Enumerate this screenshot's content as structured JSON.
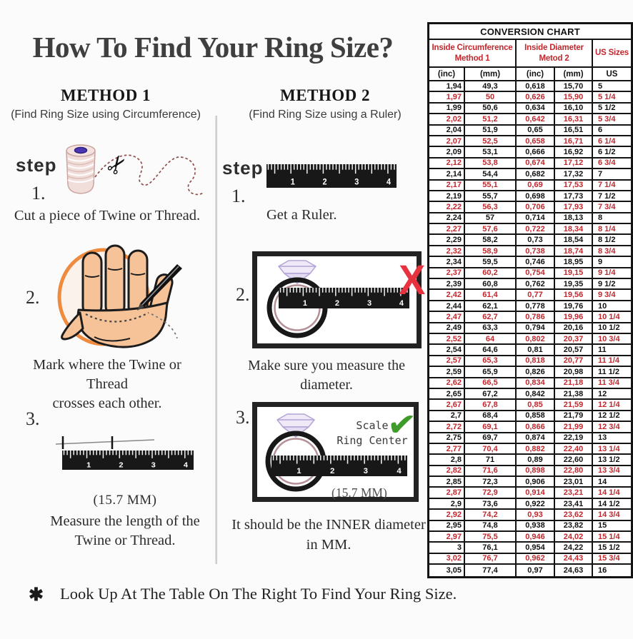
{
  "title": "How To Find Your Ring Size?",
  "methods": {
    "method1": {
      "heading": "METHOD 1",
      "subtitle": "(Find Ring Size using Circumference)",
      "step_label": "step",
      "steps": [
        {
          "num": "1.",
          "caption_lines": [
            "Cut a piece of Twine or Thread."
          ]
        },
        {
          "num": "2.",
          "caption_lines": [
            "Mark where the Twine or Thread",
            "crosses each other."
          ]
        },
        {
          "num": "3.",
          "measurement": "(15.7 MM)",
          "caption_lines": [
            "Measure the length of the",
            "Twine or Thread."
          ]
        }
      ]
    },
    "method2": {
      "heading": "METHOD 2",
      "subtitle": "(Find Ring Size using a Ruler)",
      "step_label": "step",
      "steps": [
        {
          "num": "1.",
          "caption_lines": [
            "Get a Ruler."
          ]
        },
        {
          "num": "2.",
          "caption_lines": [
            "Make sure you measure the diameter."
          ]
        },
        {
          "num": "3.",
          "annotation_lines": [
            "Scale",
            "Ring Center"
          ],
          "measurement": "(15.7 MM)",
          "caption_lines": [
            "It should be the INNER diameter",
            "in MM."
          ]
        }
      ]
    }
  },
  "footer": {
    "asterisk": "✱",
    "text": "Look Up At The Table On The Right To Find Your Ring Size."
  },
  "icons": {
    "scissors": "✂",
    "x_mark": "X",
    "check": "✔"
  },
  "illustrations": {
    "ruler_numbers": [
      "1",
      "2",
      "3",
      "4"
    ]
  },
  "colors": {
    "table_red": "#c1272d",
    "x_mark_red": "#e6333f",
    "check_green": "#3f9c2a",
    "circle_orange": "#ee8b3f",
    "skin": "#f6c298"
  },
  "conversion_chart": {
    "title": "CONVERSION CHART",
    "col_groups": [
      {
        "line1": "Inside Circumference",
        "line2": "Method 1"
      },
      {
        "line1": "Inside Diameter",
        "line2": "Metod 2"
      },
      {
        "line1": "US Sizes",
        "line2": ""
      }
    ],
    "subheaders": [
      "(inc)",
      "(mm)",
      "(inc)",
      "(mm)",
      "US"
    ],
    "rows": [
      [
        "1,94",
        "49,3",
        "0,618",
        "15,70",
        "5"
      ],
      [
        "1,97",
        "50",
        "0,626",
        "15,90",
        "5 1/4"
      ],
      [
        "1,99",
        "50,6",
        "0,634",
        "16,10",
        "5 1/2"
      ],
      [
        "2,02",
        "51,2",
        "0,642",
        "16,31",
        "5 3/4"
      ],
      [
        "2,04",
        "51,9",
        "0,65",
        "16,51",
        "6"
      ],
      [
        "2,07",
        "52,5",
        "0,658",
        "16,71",
        "6 1/4"
      ],
      [
        "2,09",
        "53,1",
        "0,666",
        "16,92",
        "6 1/2"
      ],
      [
        "2,12",
        "53,8",
        "0,674",
        "17,12",
        "6 3/4"
      ],
      [
        "2,14",
        "54,4",
        "0,682",
        "17,32",
        "7"
      ],
      [
        "2,17",
        "55,1",
        "0,69",
        "17,53",
        "7 1/4"
      ],
      [
        "2,19",
        "55,7",
        "0,698",
        "17,73",
        "7 1/2"
      ],
      [
        "2,22",
        "56,3",
        "0,706",
        "17,93",
        "7 3/4"
      ],
      [
        "2,24",
        "57",
        "0,714",
        "18,13",
        "8"
      ],
      [
        "2,27",
        "57,6",
        "0,722",
        "18,34",
        "8 1/4"
      ],
      [
        "2,29",
        "58,2",
        "0,73",
        "18,54",
        "8 1/2"
      ],
      [
        "2,32",
        "58,9",
        "0,738",
        "18,74",
        "8 3/4"
      ],
      [
        "2,34",
        "59,5",
        "0,746",
        "18,95",
        "9"
      ],
      [
        "2,37",
        "60,2",
        "0,754",
        "19,15",
        "9 1/4"
      ],
      [
        "2,39",
        "60,8",
        "0,762",
        "19,35",
        "9 1/2"
      ],
      [
        "2,42",
        "61,4",
        "0,77",
        "19,56",
        "9 3/4"
      ],
      [
        "2,44",
        "62,1",
        "0,778",
        "19,76",
        "10"
      ],
      [
        "2,47",
        "62,7",
        "0,786",
        "19,96",
        "10 1/4"
      ],
      [
        "2,49",
        "63,3",
        "0,794",
        "20,16",
        "10 1/2"
      ],
      [
        "2,52",
        "64",
        "0,802",
        "20,37",
        "10 3/4"
      ],
      [
        "2,54",
        "64,6",
        "0,81",
        "20,57",
        "11"
      ],
      [
        "2,57",
        "65,3",
        "0,818",
        "20,77",
        "11 1/4"
      ],
      [
        "2,59",
        "65,9",
        "0,826",
        "20,98",
        "11 1/2"
      ],
      [
        "2,62",
        "66,5",
        "0,834",
        "21,18",
        "11 3/4"
      ],
      [
        "2,65",
        "67,2",
        "0,842",
        "21,38",
        "12"
      ],
      [
        "2,67",
        "67,8",
        "0,85",
        "21,59",
        "12 1/4"
      ],
      [
        "2,7",
        "68,4",
        "0,858",
        "21,79",
        "12 1/2"
      ],
      [
        "2,72",
        "69,1",
        "0,866",
        "21,99",
        "12 3/4"
      ],
      [
        "2,75",
        "69,7",
        "0,874",
        "22,19",
        "13"
      ],
      [
        "2,77",
        "70,4",
        "0,882",
        "22,40",
        "13 1/4"
      ],
      [
        "2,8",
        "71",
        "0,89",
        "22,60",
        "13 1/2"
      ],
      [
        "2,82",
        "71,6",
        "0,898",
        "22,80",
        "13 3/4"
      ],
      [
        "2,85",
        "72,3",
        "0,906",
        "23,01",
        "14"
      ],
      [
        "2,87",
        "72,9",
        "0,914",
        "23,21",
        "14 1/4"
      ],
      [
        "2,9",
        "73,6",
        "0,922",
        "23,41",
        "14 1/2"
      ],
      [
        "2,92",
        "74,2",
        "0,93",
        "23,62",
        "14 3/4"
      ],
      [
        "2,95",
        "74,8",
        "0,938",
        "23,82",
        "15"
      ],
      [
        "2,97",
        "75,5",
        "0,946",
        "24,02",
        "15 1/4"
      ],
      [
        "3",
        "76,1",
        "0,954",
        "24,22",
        "15 1/2"
      ],
      [
        "3,02",
        "76,7",
        "0,962",
        "24,43",
        "15 3/4"
      ],
      [
        "3,05",
        "77,4",
        "0,97",
        "24,63",
        "16"
      ]
    ]
  }
}
